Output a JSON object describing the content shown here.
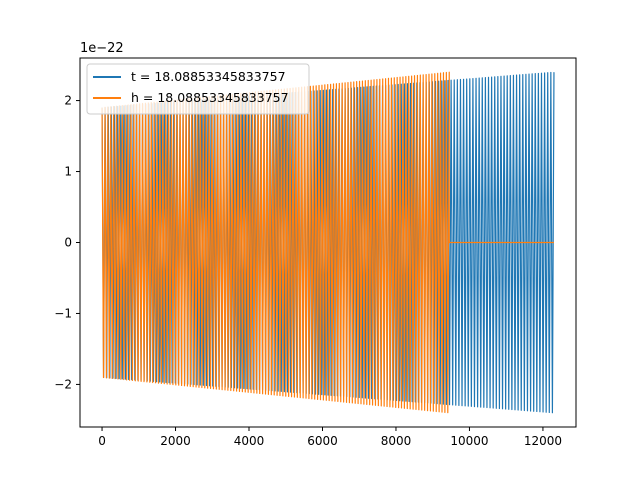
{
  "chart_data": {
    "type": "line",
    "title": "",
    "xlabel": "",
    "ylabel": "",
    "xlim": [
      -600,
      12900
    ],
    "ylim": [
      -2.6,
      2.6
    ],
    "y_offset_label": "1e−22",
    "x_ticks": [
      {
        "value": 0,
        "label": "0"
      },
      {
        "value": 2000,
        "label": "2000"
      },
      {
        "value": 4000,
        "label": "4000"
      },
      {
        "value": 6000,
        "label": "6000"
      },
      {
        "value": 8000,
        "label": "8000"
      },
      {
        "value": 10000,
        "label": "10000"
      },
      {
        "value": 12000,
        "label": "12000"
      }
    ],
    "y_ticks": [
      {
        "value": -2,
        "label": "−2"
      },
      {
        "value": -1,
        "label": "−1"
      },
      {
        "value": 0,
        "label": "0"
      },
      {
        "value": 1,
        "label": "1"
      },
      {
        "value": 2,
        "label": "2"
      }
    ],
    "legend": {
      "position": "upper-left"
    },
    "grid": false,
    "series": [
      {
        "name": "t = 18.08853345833757",
        "color": "#1f77b4",
        "signal": "oscillating chirp-like waveform",
        "x_start": 0,
        "x_end": 12300,
        "amplitude_start": 1.9,
        "amplitude_end": 2.4,
        "approx_cycles": 145
      },
      {
        "name": "h = 18.08853345833757",
        "color": "#ff7f0e",
        "signal": "oscillating waveform, zero after end",
        "x_start": 0,
        "x_end": 9450,
        "x_zero_end": 12300,
        "amplitude_start": 1.9,
        "amplitude_end": 2.4,
        "approx_cycles": 120
      }
    ]
  }
}
